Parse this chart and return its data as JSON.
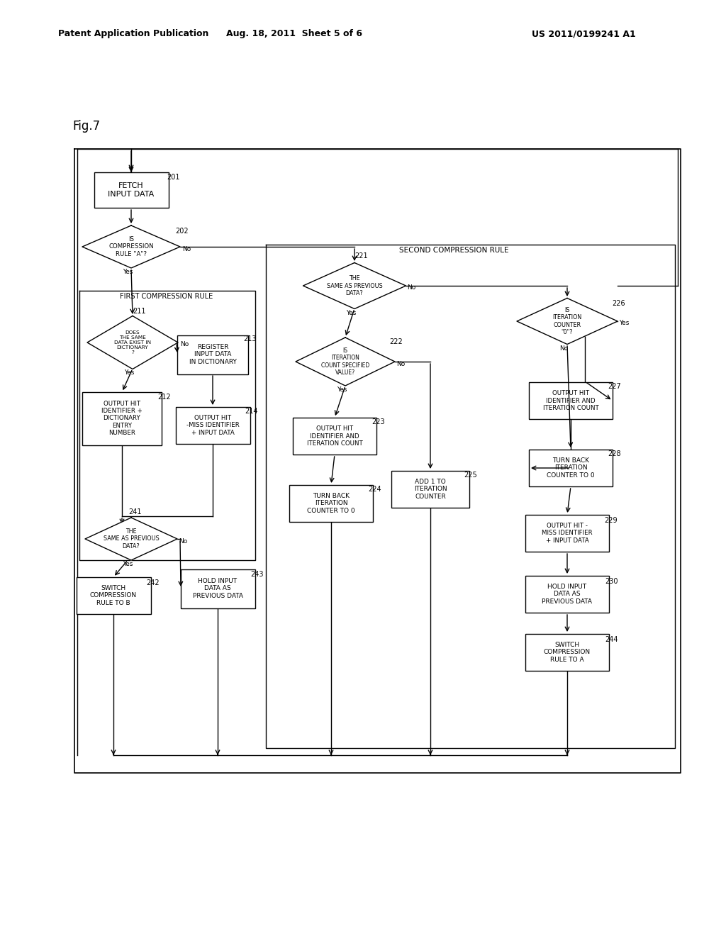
{
  "header_left": "Patent Application Publication",
  "header_center": "Aug. 18, 2011  Sheet 5 of 6",
  "header_right": "US 2011/0199241 A1",
  "fig_label": "Fig.7",
  "bg_color": "#ffffff",
  "line_color": "#000000",
  "text_color": "#000000"
}
